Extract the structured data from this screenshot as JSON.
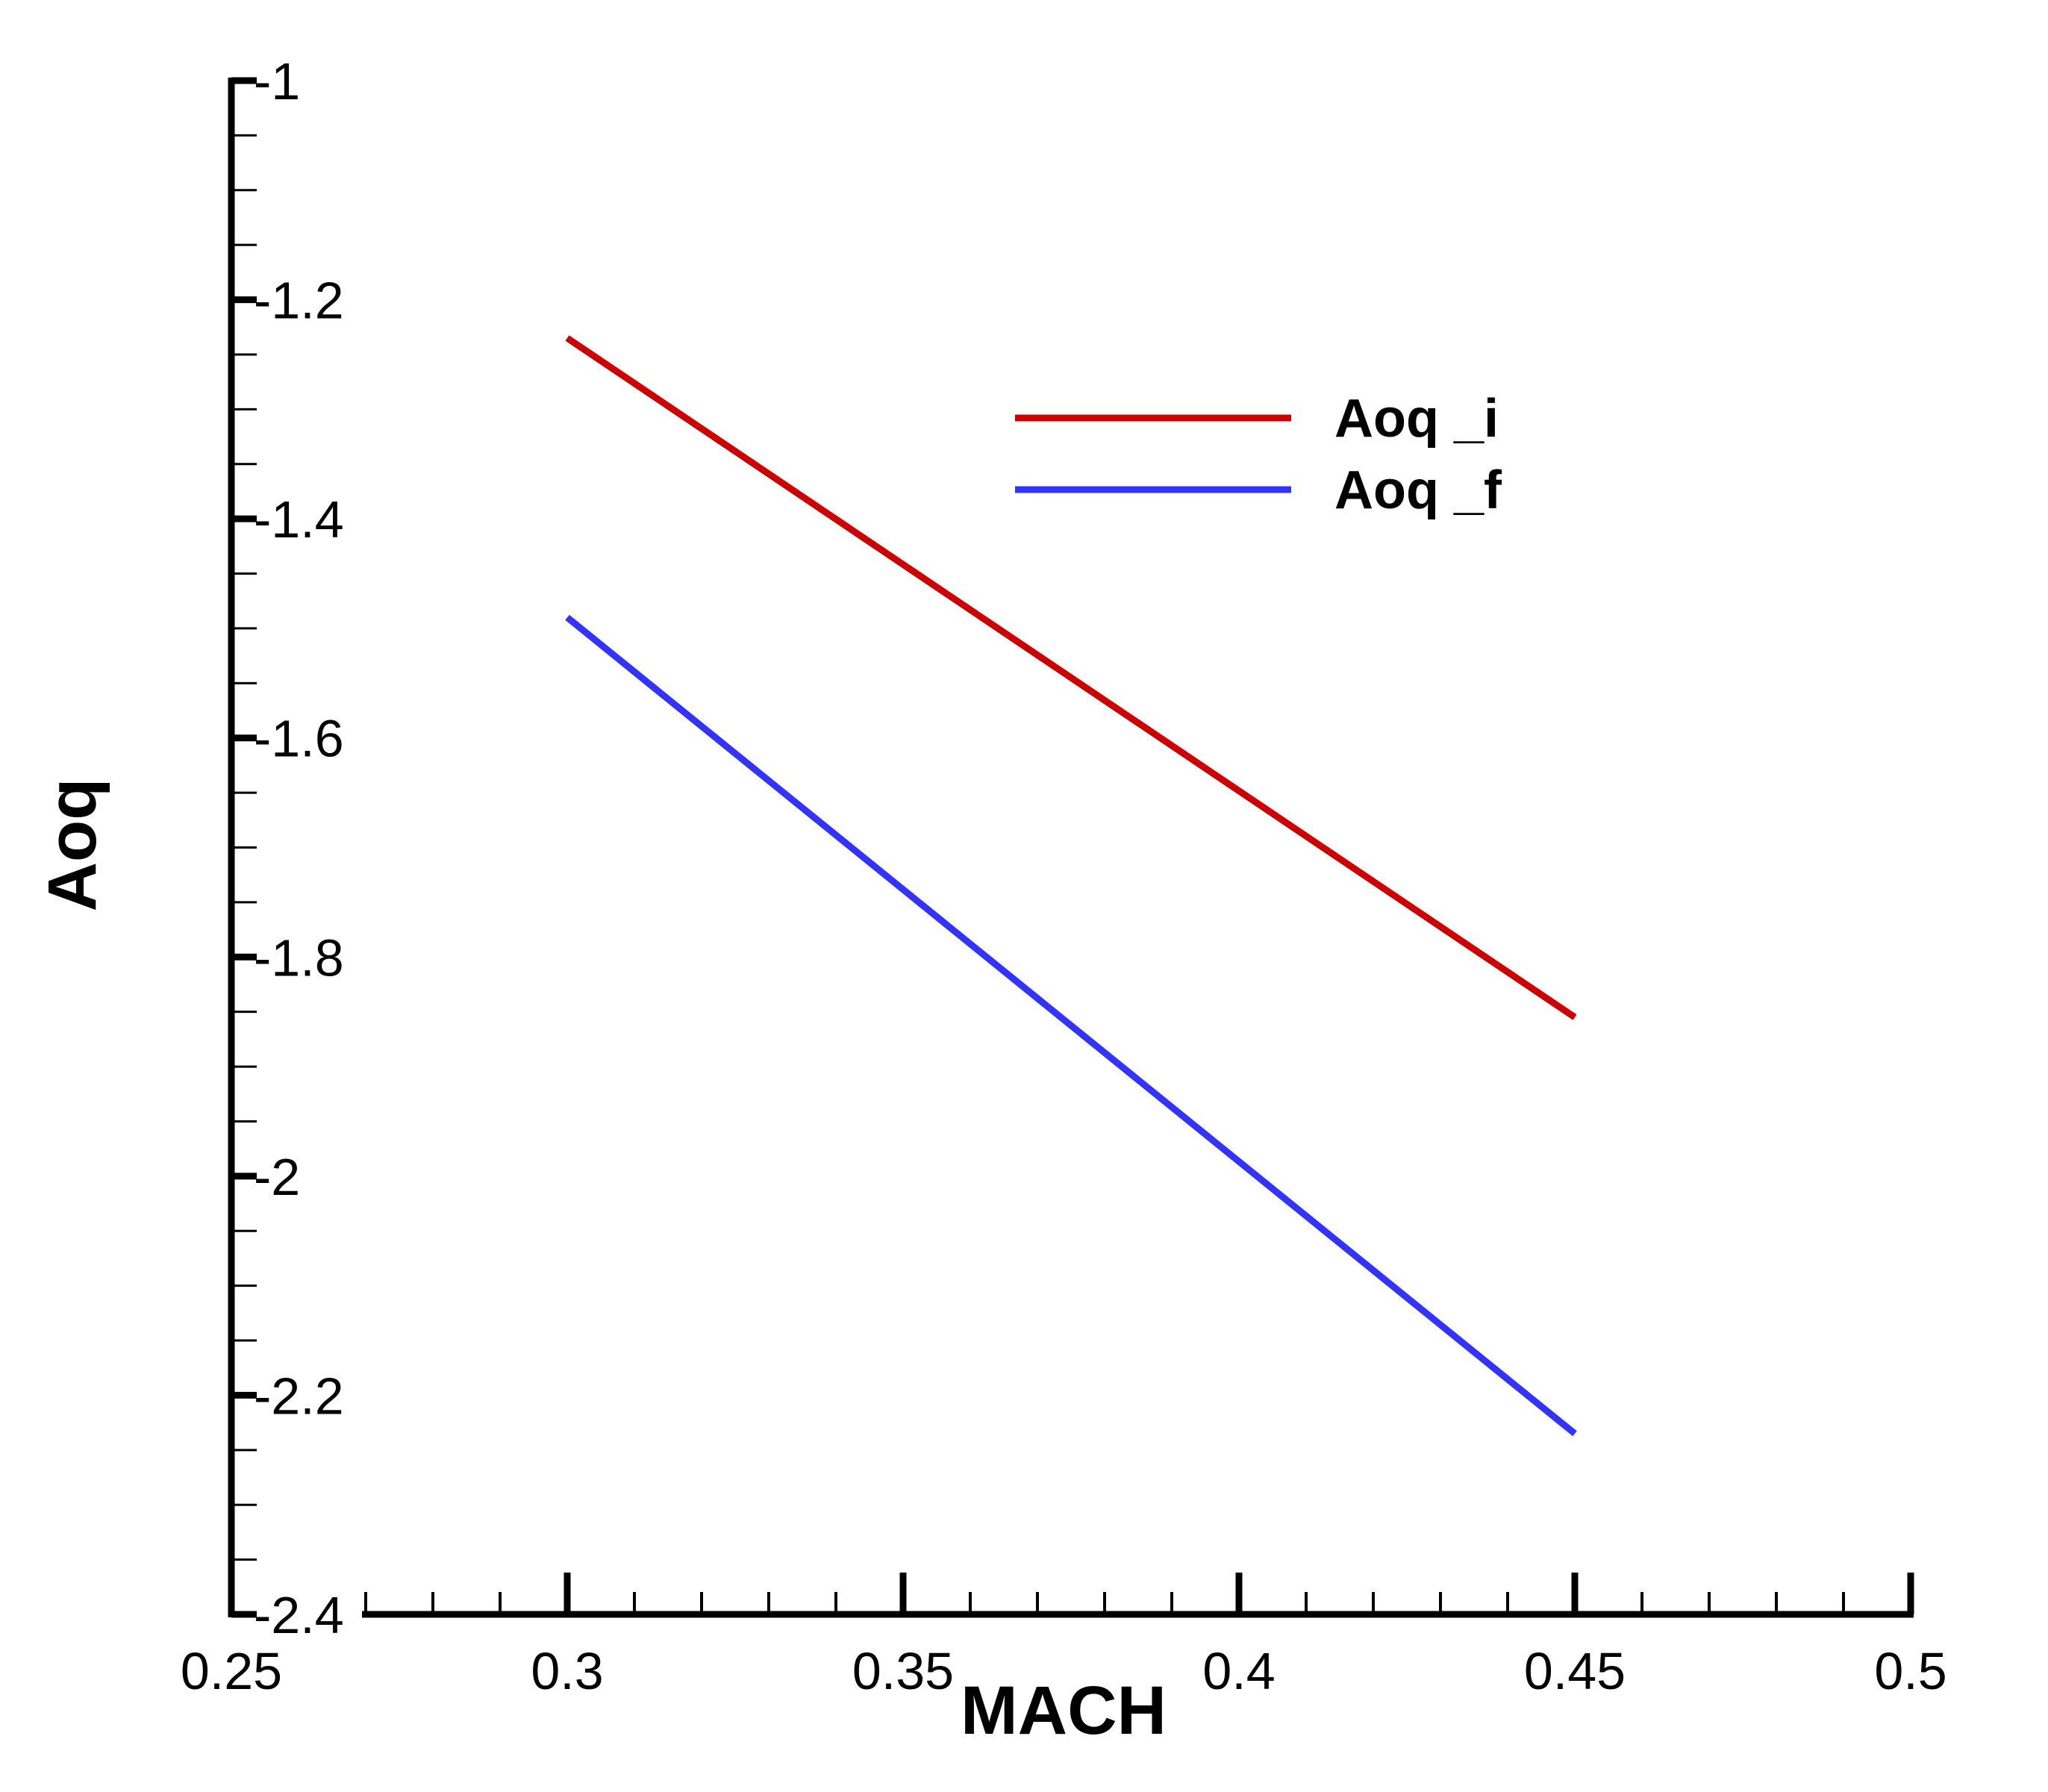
{
  "chart_data": {
    "type": "line",
    "xlabel": "MACH",
    "ylabel": "Aoq",
    "xlim": [
      0.25,
      0.5
    ],
    "ylim": [
      -2.4,
      -1
    ],
    "x_ticks": [
      "0.25",
      "0.3",
      "0.35",
      "0.4",
      "0.45",
      "0.5"
    ],
    "y_ticks": [
      "-1",
      "-1.2",
      "-1.4",
      "-1.6",
      "-1.8",
      "-2",
      "-2.2",
      "-2.4"
    ],
    "grid": false,
    "legend_position": "top-right",
    "series": [
      {
        "name": "Aoq _i",
        "color": "#cc0000",
        "x": [
          0.3,
          0.45
        ],
        "y": [
          -1.235,
          -1.855
        ]
      },
      {
        "name": "Aoq _f",
        "color": "#3333ff",
        "x": [
          0.3,
          0.45
        ],
        "y": [
          -1.49,
          -2.235
        ]
      }
    ]
  }
}
